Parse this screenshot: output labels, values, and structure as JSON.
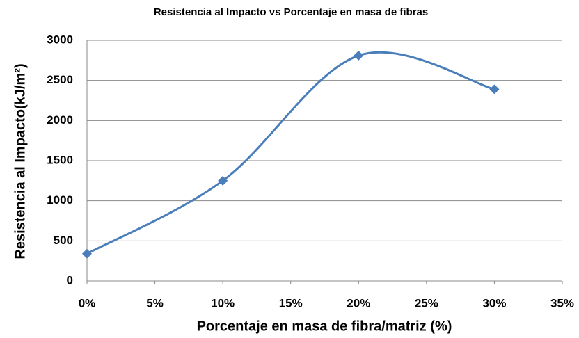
{
  "chart_data": {
    "type": "line",
    "title": "Resistencia al Impacto vs Porcentaje en masa de fibras",
    "x_label": "Porcentaje en masa de fibra/matriz (%)",
    "y_label": "Resistencia al Impacto(kJ/m²)",
    "series": [
      {
        "name": "Resistencia al Impacto",
        "color": "#4a7ebb",
        "x": [
          0,
          10,
          20,
          30
        ],
        "values": [
          340,
          1250,
          2810,
          2390
        ]
      }
    ],
    "xlim": [
      0,
      35
    ],
    "xticks": [
      {
        "value": 0,
        "label": "0%"
      },
      {
        "value": 5,
        "label": "5%"
      },
      {
        "value": 10,
        "label": "10%"
      },
      {
        "value": 15,
        "label": "15%"
      },
      {
        "value": 20,
        "label": "20%"
      },
      {
        "value": 25,
        "label": "25%"
      },
      {
        "value": 30,
        "label": "30%"
      },
      {
        "value": 35,
        "label": "35%"
      }
    ],
    "ylim": [
      0,
      3000
    ],
    "yticks": [
      0,
      500,
      1000,
      1500,
      2000,
      2500,
      3000
    ],
    "grid": true,
    "smooth": true,
    "marker": "diamond"
  }
}
